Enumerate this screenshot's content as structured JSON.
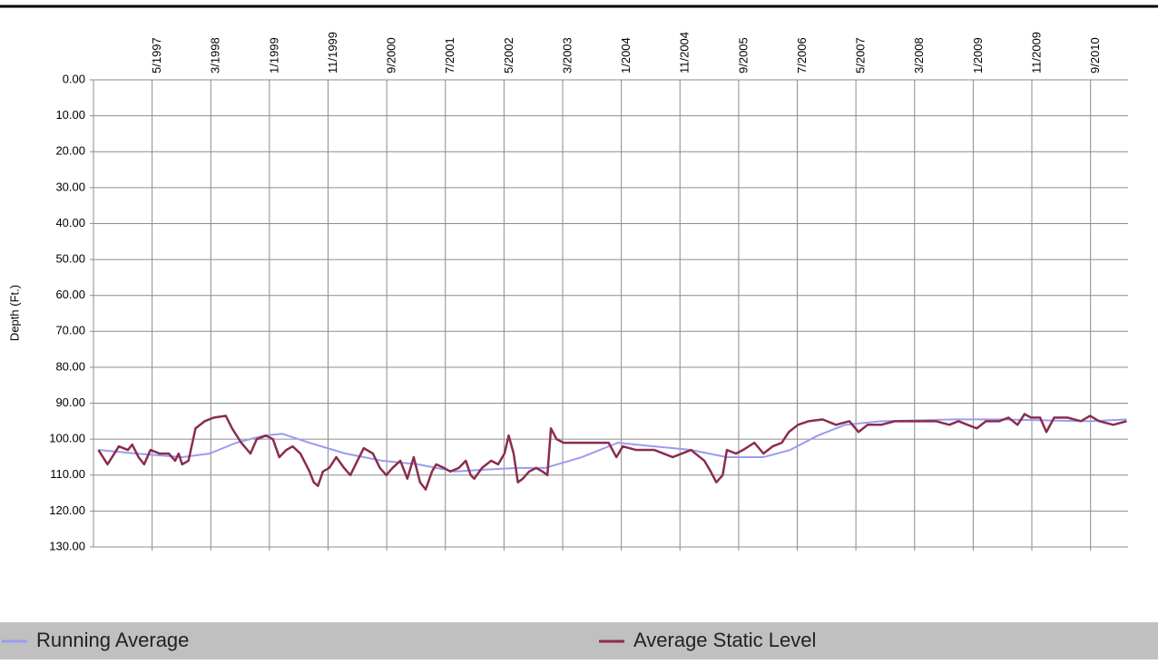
{
  "chart_data": {
    "type": "line",
    "ylabel": "Depth (Ft.)",
    "ylim": [
      0,
      130
    ],
    "y_inverted": true,
    "yticks": [
      {
        "value": 0,
        "label": "0.00"
      },
      {
        "value": 10,
        "label": "10.00"
      },
      {
        "value": 20,
        "label": "20.00"
      },
      {
        "value": 30,
        "label": "30.00"
      },
      {
        "value": 40,
        "label": "40.00"
      },
      {
        "value": 50,
        "label": "50.00"
      },
      {
        "value": 60,
        "label": "60.00"
      },
      {
        "value": 70,
        "label": "70.00"
      },
      {
        "value": 80,
        "label": "80.00"
      },
      {
        "value": 90,
        "label": "90.00"
      },
      {
        "value": 100,
        "label": "100.00"
      },
      {
        "value": 110,
        "label": "110.00"
      },
      {
        "value": 120,
        "label": "120.00"
      },
      {
        "value": 130,
        "label": "130.00"
      }
    ],
    "xlim": [
      1996.5,
      2011.2
    ],
    "xticks": [
      {
        "value": 1997.333,
        "label": "5/1997"
      },
      {
        "value": 1998.167,
        "label": "3/1998"
      },
      {
        "value": 1999.0,
        "label": "1/1999"
      },
      {
        "value": 1999.833,
        "label": "11/1999"
      },
      {
        "value": 2000.667,
        "label": "9/2000"
      },
      {
        "value": 2001.5,
        "label": "7/2001"
      },
      {
        "value": 2002.333,
        "label": "5/2002"
      },
      {
        "value": 2003.167,
        "label": "3/2003"
      },
      {
        "value": 2004.0,
        "label": "1/2004"
      },
      {
        "value": 2004.833,
        "label": "11/2004"
      },
      {
        "value": 2005.667,
        "label": "9/2005"
      },
      {
        "value": 2006.5,
        "label": "7/2006"
      },
      {
        "value": 2007.333,
        "label": "5/2007"
      },
      {
        "value": 2008.167,
        "label": "3/2008"
      },
      {
        "value": 2009.0,
        "label": "1/2009"
      },
      {
        "value": 2009.833,
        "label": "11/2009"
      },
      {
        "value": 2010.667,
        "label": "9/2010"
      }
    ],
    "grid": true,
    "legend": "bottom",
    "series": [
      {
        "name": "Running Average",
        "color": "#9b9bf0",
        "x": [
          1996.57,
          1997.11,
          1997.76,
          1998.15,
          1998.53,
          1998.92,
          1999.18,
          1999.57,
          2000.08,
          2000.6,
          2001.11,
          2001.63,
          2002.02,
          2002.53,
          2002.92,
          2003.44,
          2003.95,
          2004.47,
          2004.99,
          2005.5,
          2006.02,
          2006.4,
          2006.79,
          2007.18,
          2007.69,
          2008.73,
          2009.37,
          2010.66,
          2011.18
        ],
        "values": [
          103,
          104,
          105,
          104,
          101,
          99,
          98.5,
          101,
          104,
          106,
          107,
          109,
          108.5,
          108,
          108,
          105,
          101,
          102,
          103,
          105,
          105,
          103,
          99,
          96,
          95,
          94.5,
          94.5,
          95,
          94.5
        ]
      },
      {
        "name": "Average Static Level",
        "color": "#8b2c4e",
        "x": [
          1996.57,
          1996.7,
          1996.86,
          1996.99,
          1997.05,
          1997.14,
          1997.22,
          1997.31,
          1997.44,
          1997.57,
          1997.66,
          1997.71,
          1997.76,
          1997.85,
          1997.95,
          1998.08,
          1998.21,
          1998.38,
          1998.47,
          1998.6,
          1998.73,
          1998.82,
          1998.95,
          1999.05,
          1999.14,
          1999.24,
          1999.33,
          1999.44,
          1999.57,
          1999.63,
          1999.69,
          1999.76,
          1999.85,
          1999.95,
          2000.06,
          2000.15,
          2000.25,
          2000.34,
          2000.47,
          2000.57,
          2000.66,
          2000.75,
          2000.86,
          2000.96,
          2001.05,
          2001.14,
          2001.22,
          2001.31,
          2001.37,
          2001.48,
          2001.57,
          2001.69,
          2001.79,
          2001.86,
          2001.91,
          2002.02,
          2002.15,
          2002.25,
          2002.34,
          2002.4,
          2002.47,
          2002.53,
          2002.6,
          2002.69,
          2002.79,
          2002.88,
          2002.95,
          2003.0,
          2003.08,
          2003.18,
          2003.44,
          2003.69,
          2003.82,
          2003.93,
          2004.02,
          2004.21,
          2004.47,
          2004.73,
          2004.99,
          2005.18,
          2005.27,
          2005.35,
          2005.44,
          2005.5,
          2005.63,
          2005.73,
          2005.89,
          2006.02,
          2006.15,
          2006.28,
          2006.38,
          2006.51,
          2006.66,
          2006.86,
          2007.05,
          2007.24,
          2007.37,
          2007.5,
          2007.69,
          2007.89,
          2008.08,
          2008.28,
          2008.47,
          2008.66,
          2008.79,
          2008.92,
          2009.05,
          2009.18,
          2009.37,
          2009.5,
          2009.63,
          2009.73,
          2009.82,
          2009.95,
          2010.04,
          2010.15,
          2010.34,
          2010.53,
          2010.66,
          2010.79,
          2010.99,
          2011.18
        ],
        "values": [
          103,
          107,
          102,
          103,
          101.5,
          105,
          107,
          103,
          104,
          104,
          106,
          104,
          107,
          106,
          97,
          95,
          94,
          93.5,
          97,
          101,
          104,
          100,
          99,
          100,
          105,
          103,
          102,
          104,
          109,
          112,
          113,
          109,
          108,
          105,
          108,
          110,
          106,
          102.5,
          104,
          108,
          110,
          108,
          106,
          111,
          105,
          112,
          114,
          109,
          107,
          108,
          109,
          108,
          106,
          110,
          111,
          108,
          106,
          107,
          104,
          99,
          104,
          112,
          111,
          109,
          108,
          109,
          110,
          97,
          100,
          101,
          101,
          101,
          101,
          105,
          102,
          103,
          103,
          105,
          103,
          106,
          109,
          112,
          110,
          103,
          104,
          103,
          101,
          104,
          102,
          101,
          98,
          96,
          95,
          94.5,
          96,
          95,
          98,
          96,
          96,
          95,
          95,
          95,
          95,
          96,
          95,
          96,
          97,
          95,
          95,
          94,
          96,
          93,
          94,
          94,
          98,
          94,
          94,
          95,
          93.5,
          95,
          96,
          95
        ]
      }
    ]
  }
}
